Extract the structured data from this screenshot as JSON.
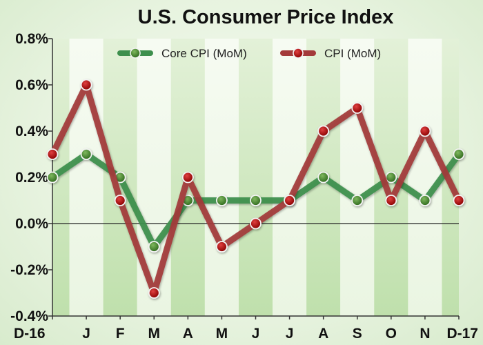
{
  "chart_data": {
    "type": "line",
    "title": "U.S. Consumer Price Index",
    "categories": [
      "D-16",
      "J",
      "F",
      "M",
      "A",
      "M",
      "J",
      "J",
      "A",
      "S",
      "O",
      "N",
      "D-17"
    ],
    "series": [
      {
        "name": "Core CPI (MoM)",
        "color": "#3d8f4d",
        "marker_color": "#3f7d2a",
        "values": [
          0.2,
          0.3,
          0.2,
          -0.1,
          0.1,
          0.1,
          0.1,
          0.1,
          0.2,
          0.1,
          0.2,
          0.1,
          0.3
        ]
      },
      {
        "name": "CPI (MoM)",
        "color": "#a33a3a",
        "marker_color": "#b01010",
        "values": [
          0.3,
          0.6,
          0.1,
          -0.3,
          0.2,
          -0.1,
          0.0,
          0.1,
          0.4,
          0.5,
          0.1,
          0.4,
          0.1
        ]
      }
    ],
    "yticks": [
      "0.8%",
      "0.6%",
      "0.4%",
      "0.2%",
      "0.0%",
      "-0.2%",
      "-0.4%"
    ],
    "ylim": [
      -0.4,
      0.8
    ],
    "unit": "%",
    "legend_position": "top-center",
    "grid": "alternating vertical bands",
    "band_colors": [
      "#f2f9ec",
      "#cfe7c0"
    ],
    "zero_line": true
  }
}
